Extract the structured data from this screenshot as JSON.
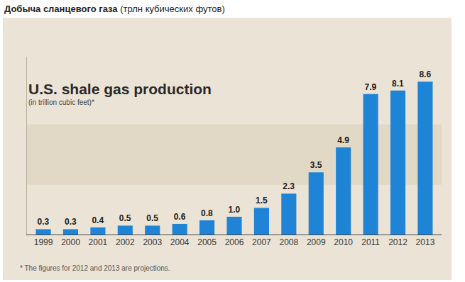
{
  "header": {
    "title": "Добыча сланцевого газа",
    "subtitle": "(трлн кубических футов)"
  },
  "chart_data": {
    "type": "bar",
    "title": "U.S. shale gas production",
    "subtitle": "(in trillion cubic feet)*",
    "footnote": "* The figures for 2012 and 2013 are projections.",
    "categories": [
      "1999",
      "2000",
      "2001",
      "2002",
      "2003",
      "2004",
      "2005",
      "2006",
      "2007",
      "2008",
      "2009",
      "2010",
      "2011",
      "2012",
      "2013"
    ],
    "values": [
      0.3,
      0.3,
      0.4,
      0.5,
      0.5,
      0.6,
      0.8,
      1.0,
      1.5,
      2.3,
      3.5,
      4.9,
      7.9,
      8.1,
      8.6
    ],
    "value_labels": [
      "0.3",
      "0.3",
      "0.4",
      "0.5",
      "0.5",
      "0.6",
      "0.8",
      "1.0",
      "1.5",
      "2.3",
      "3.5",
      "4.9",
      "7.9",
      "8.1",
      "8.6"
    ],
    "color": "#1f84d6",
    "ylim": [
      0,
      10
    ],
    "grid": false,
    "data_labels": true,
    "tick_labels": "x"
  }
}
